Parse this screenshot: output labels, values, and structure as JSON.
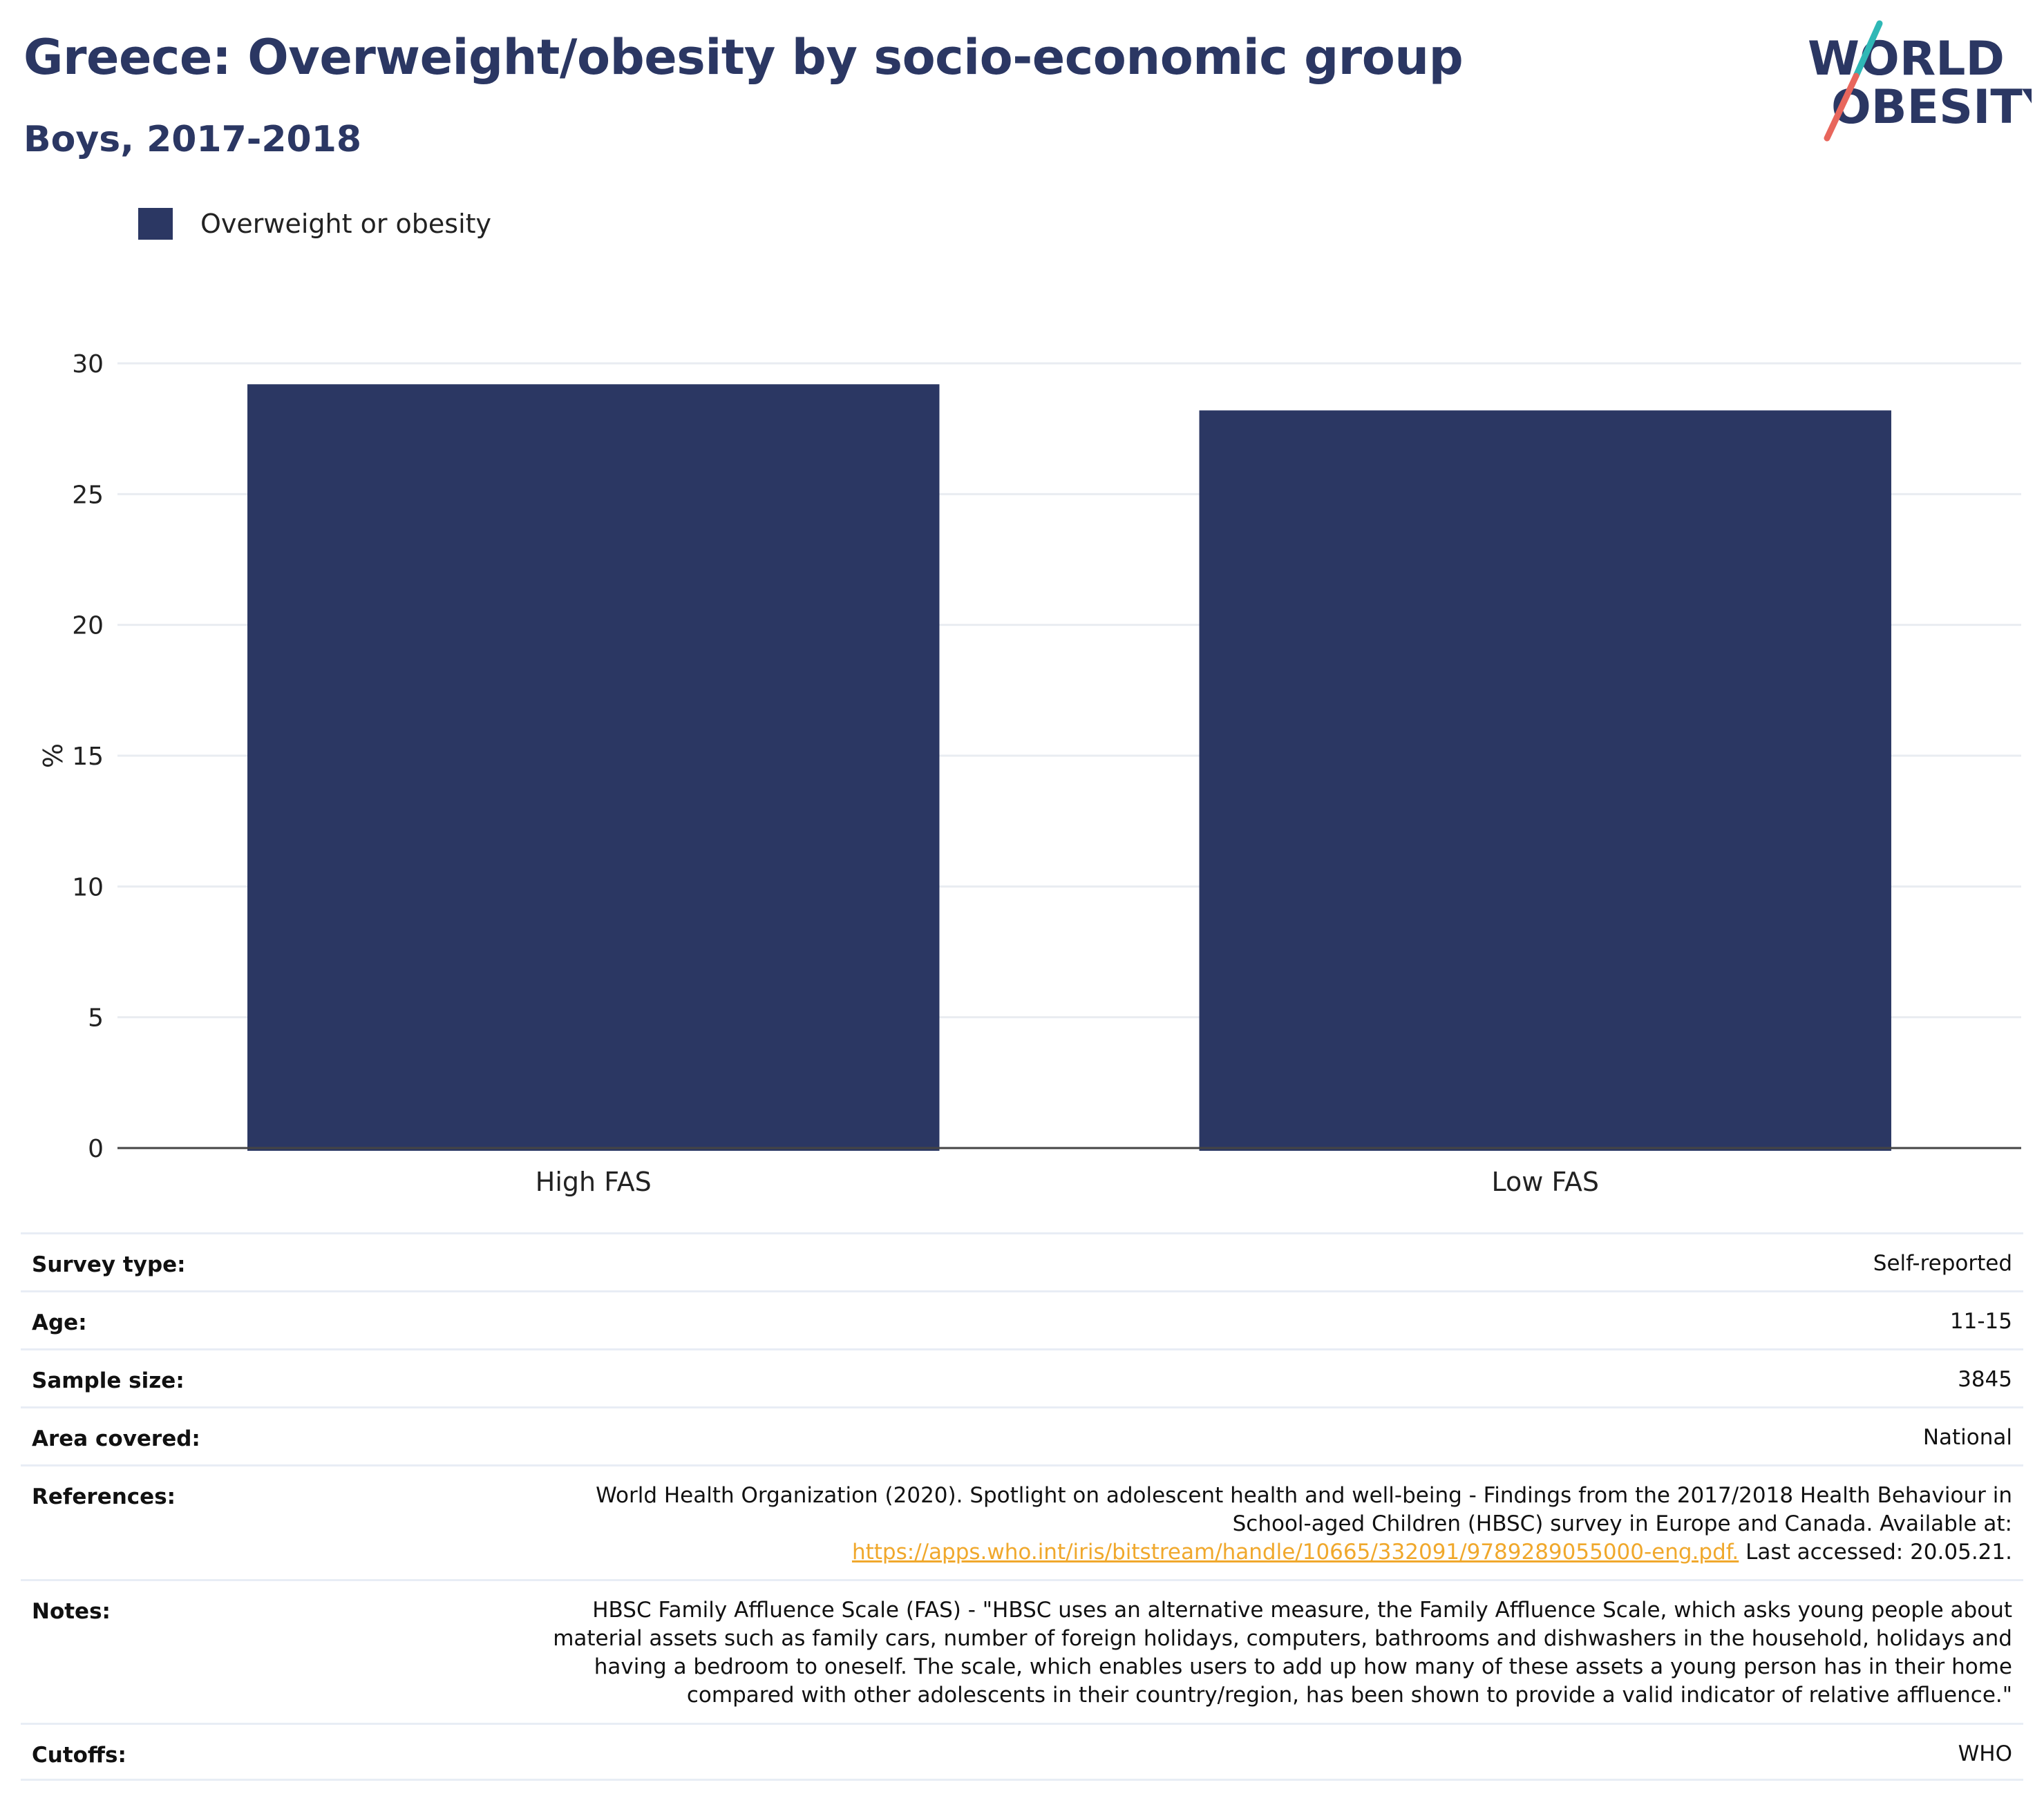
{
  "header": {
    "title": "Greece: Overweight/obesity by socio-economic group",
    "subtitle": "Boys, 2017-2018"
  },
  "logo": {
    "line1": "WORLD",
    "line2": "OBESITY",
    "colors": {
      "text": "#2b3763",
      "slash_top": "#2fb8b6",
      "slash_bottom": "#e8665c"
    }
  },
  "colors": {
    "bar": "#2b3763",
    "grid": "#e9ecf1",
    "axis": "#444444",
    "link": "#f0a82c"
  },
  "chart_data": {
    "type": "bar",
    "categories": [
      "High FAS",
      "Low FAS"
    ],
    "series": [
      {
        "name": "Overweight or obesity",
        "values": [
          29.2,
          28.2
        ]
      }
    ],
    "ylabel": "%",
    "xlabel": "",
    "ylim": [
      0,
      30
    ],
    "yticks": [
      0,
      5,
      10,
      15,
      20,
      25,
      30
    ],
    "grid": true,
    "legend": "top-left"
  },
  "meta": [
    {
      "key": "Survey type:",
      "value": "Self-reported"
    },
    {
      "key": "Age:",
      "value": "11-15"
    },
    {
      "key": "Sample size:",
      "value": "3845"
    },
    {
      "key": "Area covered:",
      "value": "National"
    },
    {
      "key": "References:",
      "value_lines": [
        "World Health Organization (2020). Spotlight on adolescent health and well-being - Findings from the 2017/2018 Health Behaviour in",
        "School-aged Children (HBSC) survey in Europe and Canada. Available at:"
      ],
      "link": "https://apps.who.int/iris/bitstream/handle/10665/332091/9789289055000-eng.pdf.",
      "value_after_link": " Last accessed: 20.05.21."
    },
    {
      "key": "Notes:",
      "value_lines": [
        "HBSC Family Affluence Scale (FAS) - \"HBSC uses an alternative measure, the Family Affluence Scale, which asks young people about",
        "material assets such as family cars, number of foreign holidays, computers, bathrooms and dishwashers in the household, holidays and",
        "having a bedroom to oneself. The scale, which enables users to add up how many of these assets a young person has in their home",
        "compared with other adolescents in their country/region, has been shown to provide a valid indicator of relative affluence.\""
      ]
    },
    {
      "key": "Cutoffs:",
      "value": "WHO"
    }
  ]
}
